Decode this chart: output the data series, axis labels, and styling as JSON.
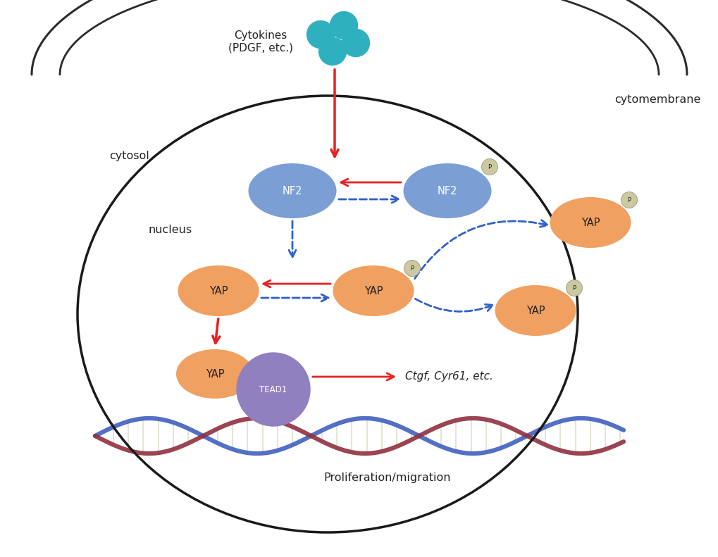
{
  "bg_color": "#ffffff",
  "cell_membrane_color": "#2a2a2a",
  "nucleus_color": "#1a1a1a",
  "nf2_color": "#7b9fd4",
  "yap_color": "#f0a060",
  "tead1_color": "#9080c0",
  "p_badge_color": "#ccc8a0",
  "cytokine_color": "#2eb0bf",
  "red_arrow_color": "#e82020",
  "blue_arrow_color": "#3060c8",
  "text_color": "#222222",
  "label_cytokines": "Cytokines\n(PDGF, etc.)",
  "label_cytomembrane": "cytomembrane",
  "label_cytosol": "cytosol",
  "label_nucleus": "nucleus",
  "label_nf2": "NF2",
  "label_yap": "YAP",
  "label_tead1": "TEAD1",
  "label_p": "P",
  "label_genes": "Ctgf, Cyr61, etc.",
  "label_proliferation": "Proliferation/migration"
}
